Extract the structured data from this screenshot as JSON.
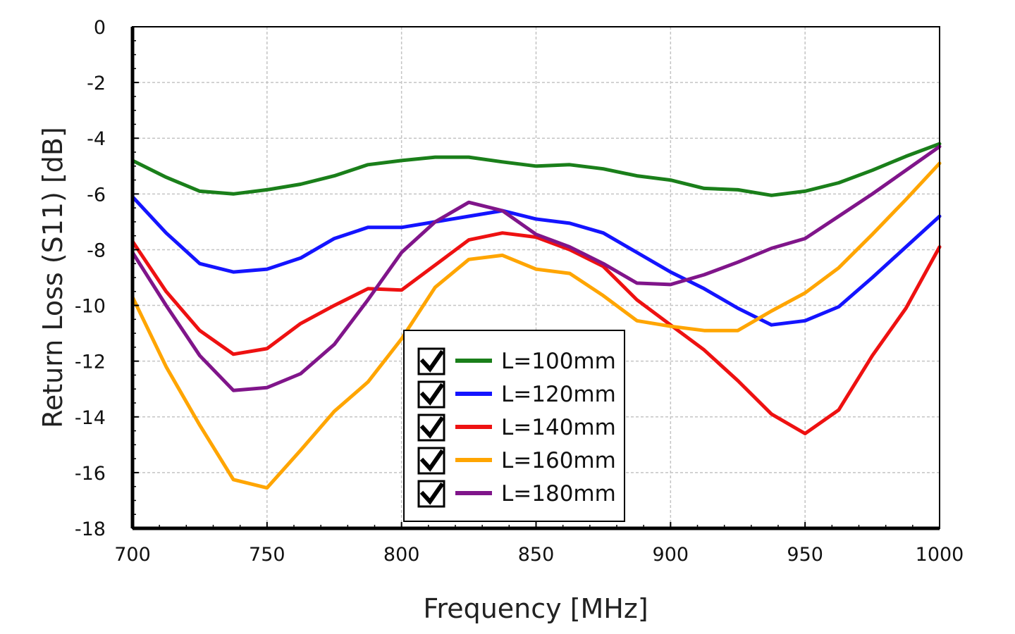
{
  "chart_data": {
    "type": "line",
    "title": "",
    "xlabel": "Frequency [MHz]",
    "ylabel": "Return Loss (S11) [dB]",
    "xlim": [
      700,
      1000
    ],
    "ylim": [
      -18,
      0
    ],
    "x_ticks": [
      "700",
      "750",
      "800",
      "850",
      "900",
      "950",
      "1000"
    ],
    "y_ticks": [
      "0",
      "-2",
      "-4",
      "-6",
      "-8",
      "-10",
      "-12",
      "-14",
      "-16",
      "-18"
    ],
    "grid": true,
    "legend_position": "bottom-center",
    "x": [
      700,
      712.5,
      725,
      737.5,
      750,
      762.5,
      775,
      787.5,
      800,
      812.5,
      825,
      837.5,
      850,
      862.5,
      875,
      887.5,
      900,
      912.5,
      925,
      937.5,
      950,
      962.5,
      975,
      987.5,
      1000
    ],
    "series": [
      {
        "name": "L=100mm",
        "color": "#1a7f1a",
        "values": [
          -4.8,
          -5.4,
          -5.9,
          -6.0,
          -5.85,
          -5.65,
          -5.35,
          -4.95,
          -4.8,
          -4.68,
          -4.68,
          -4.85,
          -5.0,
          -4.95,
          -5.1,
          -5.35,
          -5.5,
          -5.8,
          -5.85,
          -6.05,
          -5.9,
          -5.6,
          -5.15,
          -4.65,
          -4.2
        ]
      },
      {
        "name": "L=120mm",
        "color": "#1414ff",
        "values": [
          -6.1,
          -7.4,
          -8.5,
          -8.8,
          -8.7,
          -8.3,
          -7.6,
          -7.2,
          -7.2,
          -7.0,
          -6.8,
          -6.6,
          -6.9,
          -7.05,
          -7.4,
          -8.1,
          -8.8,
          -9.4,
          -10.1,
          -10.7,
          -10.55,
          -10.05,
          -9.0,
          -7.9,
          -6.8
        ]
      },
      {
        "name": "L=140mm",
        "color": "#ee1111",
        "values": [
          -7.7,
          -9.5,
          -10.9,
          -11.75,
          -11.55,
          -10.65,
          -10.0,
          -9.4,
          -9.45,
          -8.55,
          -7.65,
          -7.4,
          -7.55,
          -8.0,
          -8.6,
          -9.8,
          -10.7,
          -11.6,
          -12.7,
          -13.9,
          -14.6,
          -13.75,
          -11.8,
          -10.1,
          -7.9
        ]
      },
      {
        "name": "L=160mm",
        "color": "#ffa500",
        "values": [
          -9.7,
          -12.2,
          -14.3,
          -16.25,
          -16.55,
          -15.2,
          -13.8,
          -12.75,
          -11.2,
          -9.35,
          -8.35,
          -8.2,
          -8.7,
          -8.85,
          -9.65,
          -10.55,
          -10.75,
          -10.9,
          -10.9,
          -10.2,
          -9.55,
          -8.65,
          -7.45,
          -6.2,
          -4.9
        ]
      },
      {
        "name": "L=180mm",
        "color": "#80158a",
        "values": [
          -8.1,
          -10.0,
          -11.8,
          -13.05,
          -12.95,
          -12.45,
          -11.4,
          -9.8,
          -8.1,
          -7.0,
          -6.3,
          -6.6,
          -7.45,
          -7.9,
          -8.5,
          -9.2,
          -9.25,
          -8.9,
          -8.45,
          -7.95,
          -7.6,
          -6.8,
          -6.0,
          -5.15,
          -4.3
        ]
      }
    ]
  }
}
